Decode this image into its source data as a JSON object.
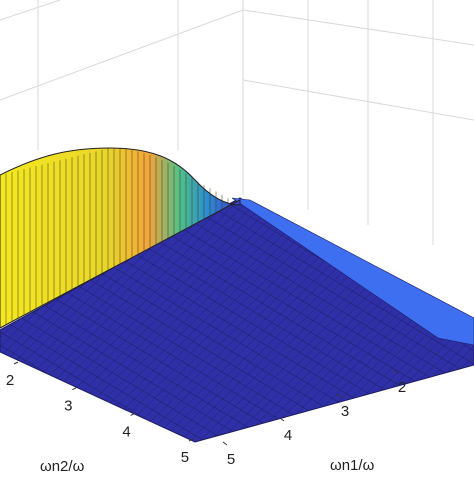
{
  "chart_data": {
    "type": "surface",
    "xlabel": "ωn2/ω",
    "ylabel": "ωn1/ω",
    "xlim": [
      1,
      5
    ],
    "xticks": [
      2,
      3,
      4,
      5
    ],
    "ylim": [
      1,
      5
    ],
    "yticks": [
      2,
      3,
      4,
      5
    ],
    "grid": true
  }
}
